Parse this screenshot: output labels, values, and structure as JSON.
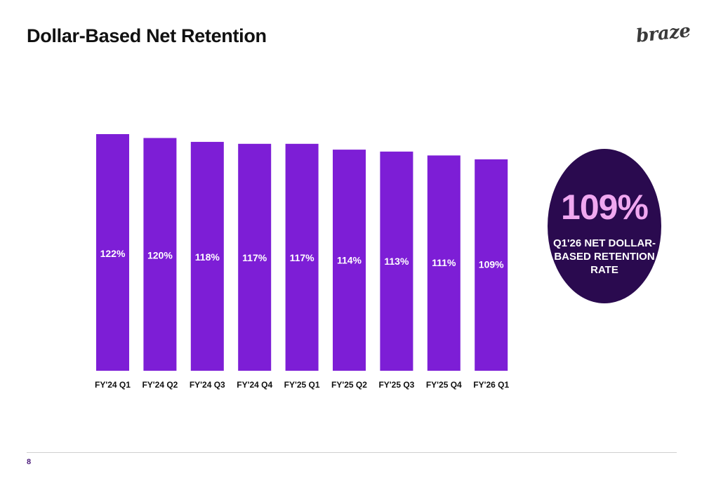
{
  "slide": {
    "title": "Dollar-Based Net Retention",
    "logo_text": "braze",
    "page_number": "8"
  },
  "colors": {
    "bar": "#7d1ed6",
    "callout_bg": "#2a0a4f",
    "callout_value": "#f0a8f0"
  },
  "callout": {
    "value": "109%",
    "label": "Q1'26 NET DOLLAR-\nBASED RETENTION\nRATE"
  },
  "chart_data": {
    "type": "bar",
    "categories": [
      "FY'24 Q1",
      "FY'24 Q2",
      "FY'24 Q3",
      "FY'24 Q4",
      "FY'25 Q1",
      "FY'25 Q2",
      "FY'25 Q3",
      "FY'25 Q4",
      "FY'26 Q1"
    ],
    "values": [
      122,
      120,
      118,
      117,
      117,
      114,
      113,
      111,
      109
    ],
    "value_labels": [
      "122%",
      "120%",
      "118%",
      "117%",
      "117%",
      "114%",
      "113%",
      "111%",
      "109%"
    ],
    "title": "Dollar-Based Net Retention",
    "xlabel": "",
    "ylabel": "",
    "grid": false,
    "legend": "none"
  }
}
